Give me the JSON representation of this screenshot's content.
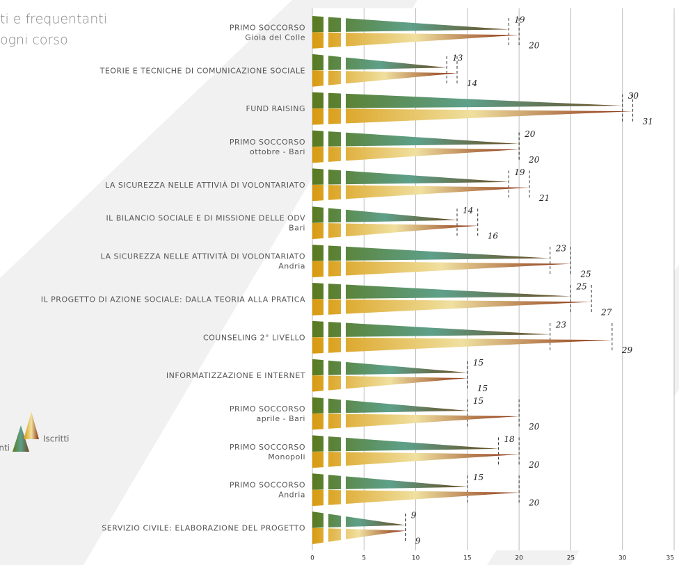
{
  "chart_data": {
    "type": "bar",
    "orientation": "horizontal",
    "title": [
      "ti e frequentanti",
      "ogni corso"
    ],
    "categories": [
      [
        "PRIMO SOCCORSO",
        "Gioia del Colle"
      ],
      [
        "TEORIE E TECNICHE DI COMUNICAZIONE SOCIALE"
      ],
      [
        "FUND RAISING"
      ],
      [
        "PRIMO SOCCORSO",
        "ottobre - Bari"
      ],
      [
        "LA SICUREZZA NELLE ATTIVIÀ DI VOLONTARIATO"
      ],
      [
        "IL BILANCIO SOCIALE E DI MISSIONE DELLE ODV",
        "Bari"
      ],
      [
        "LA SICUREZZA NELLE ATTIVITÀ DI VOLONTARIATO",
        "Andria"
      ],
      [
        "IL PROGETTO DI AZIONE SOCIALE: DALLA TEORIA ALLA PRATICA"
      ],
      [
        "COUNSELING 2° LIVELLO"
      ],
      [
        "INFORMATIZZAZIONE E INTERNET"
      ],
      [
        "PRIMO SOCCORSO",
        "aprile - Bari"
      ],
      [
        "PRIMO SOCCORSO",
        "Monopoli"
      ],
      [
        "PRIMO SOCCORSO",
        "Andria"
      ],
      [
        "SERVIZIO CIVILE: ELABORAZIONE DEL PROGETTO"
      ]
    ],
    "series": [
      {
        "name": "nti",
        "color": "#5a8a3a",
        "values": [
          19,
          13,
          30,
          20,
          19,
          14,
          23,
          25,
          23,
          15,
          15,
          18,
          15,
          9
        ]
      },
      {
        "name": "Iscritti",
        "color": "#d4a020",
        "values": [
          20,
          14,
          31,
          20,
          21,
          16,
          25,
          27,
          29,
          15,
          20,
          20,
          20,
          9
        ]
      }
    ],
    "xlim": [
      0,
      35
    ],
    "xticks": [
      0,
      5,
      10,
      15,
      20,
      25,
      30,
      35
    ],
    "grid": true
  }
}
